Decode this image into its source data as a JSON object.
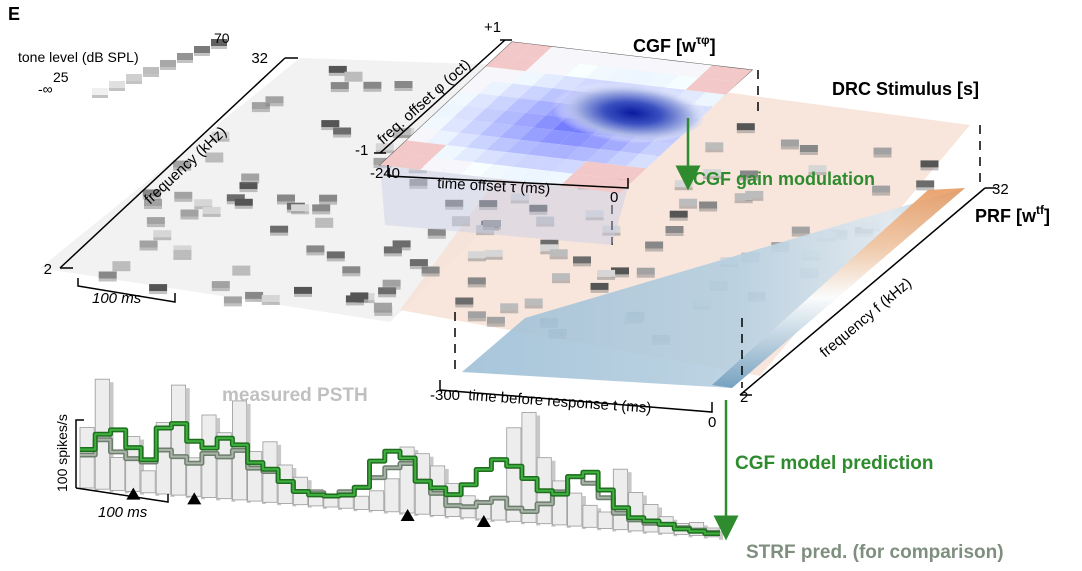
{
  "panel_letter": "E",
  "legend": {
    "title": "tone level (dB SPL)",
    "max": "70",
    "mid": "25",
    "min": "-∞"
  },
  "stimulus": {
    "title": "DRC Stimulus [s]",
    "freq_axis_label": "frequency (kHz)",
    "freq_top": "32",
    "freq_bottom": "2",
    "time_scale": "100 ms"
  },
  "cgf": {
    "title_main": "CGF [w",
    "title_sup": "τφ",
    "title_close": "]",
    "freq_axis_label": "freq. offset φ (oct)",
    "freq_top": "+1",
    "freq_bottom": "-1",
    "time_axis_label": "time offset τ (ms)",
    "time_left": "-240",
    "time_right": "0",
    "arrow_label": "CGF gain modulation"
  },
  "prf": {
    "title_main": "PRF [w",
    "title_sup": "tf",
    "title_close": "]",
    "freq_axis_label": "frequency f (kHz)",
    "freq_top": "32",
    "freq_bottom": "2",
    "time_axis_label": "time before response t (ms)",
    "time_left": "-300",
    "time_right": "0"
  },
  "psth": {
    "measured_label": "measured PSTH",
    "y_scale": "100 spikes/s",
    "time_scale": "100 ms",
    "cgf_prediction_label": "CGF model prediction",
    "strf_prediction_label": "STRF pred. (for comparison)",
    "bars": [
      0.55,
      1.0,
      0.3,
      0.5,
      0.2,
      0.65,
      1.0,
      0.35,
      0.75,
      0.6,
      0.9,
      0.45,
      0.55,
      0.35,
      0.25,
      0.15,
      0.12,
      0.1,
      0.12,
      0.18,
      0.3,
      0.6,
      0.55,
      0.45,
      0.3,
      0.2,
      0.15,
      0.2,
      0.85,
      1.0,
      0.6,
      0.4,
      0.3,
      0.2,
      0.15,
      0.55,
      0.35,
      0.25,
      0.15,
      0.1,
      0.12,
      0.08
    ],
    "cgf_pred": [
      0.35,
      0.5,
      0.55,
      0.4,
      0.3,
      0.6,
      0.65,
      0.5,
      0.45,
      0.55,
      0.5,
      0.35,
      0.3,
      0.2,
      0.12,
      0.1,
      0.1,
      0.12,
      0.2,
      0.45,
      0.55,
      0.5,
      0.3,
      0.25,
      0.2,
      0.3,
      0.45,
      0.55,
      0.5,
      0.4,
      0.3,
      0.28,
      0.45,
      0.5,
      0.35,
      0.2,
      0.12,
      0.1,
      0.08,
      0.05,
      0.04,
      0.03
    ],
    "strf_pred": [
      0.3,
      0.45,
      0.35,
      0.3,
      0.28,
      0.4,
      0.35,
      0.3,
      0.4,
      0.38,
      0.45,
      0.3,
      0.28,
      0.2,
      0.12,
      0.12,
      0.1,
      0.15,
      0.2,
      0.3,
      0.4,
      0.45,
      0.3,
      0.2,
      0.1,
      0.1,
      0.15,
      0.2,
      0.12,
      0.1,
      0.18,
      0.3,
      0.45,
      0.4,
      0.28,
      0.15,
      0.1,
      0.08,
      0.08,
      0.06,
      0.05,
      0.04
    ],
    "stimulus_markers": [
      3,
      7,
      21,
      26
    ]
  },
  "colors": {
    "cgf_green": "#2e8b2e",
    "strf_grey": "#7f8f7f",
    "measured_label_grey": "#c0c0c0",
    "prf_orange": "#e9a070",
    "prf_blue": "#6f9cbc",
    "cgf_blue": "#1020a0",
    "cgf_red": "#e8a0a0"
  }
}
